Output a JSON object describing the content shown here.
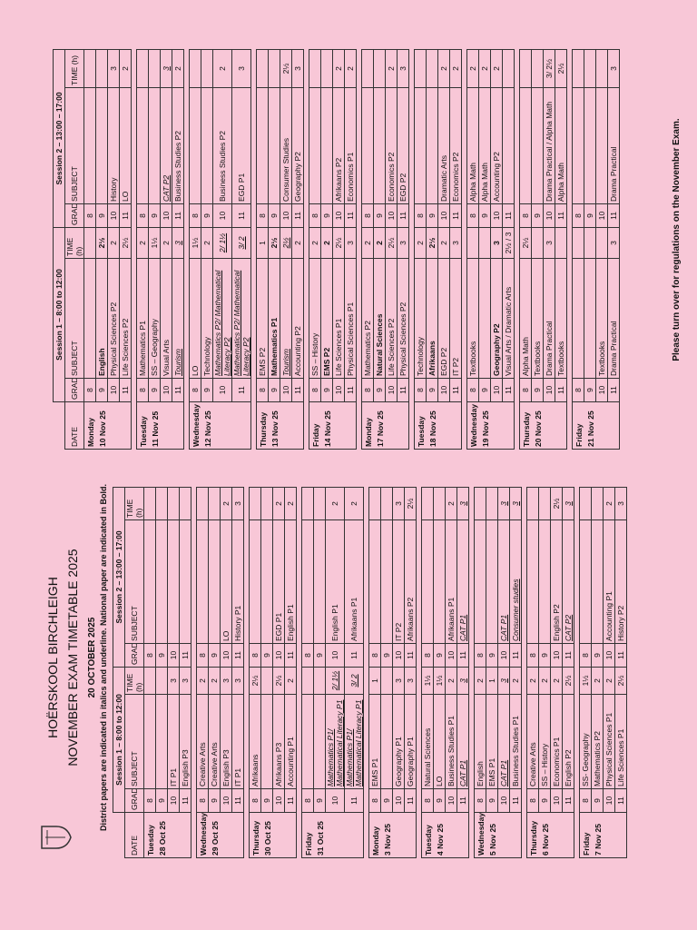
{
  "header": {
    "school": "HOËRSKOOL BIRCHLEIGH",
    "title": "NOVEMBER EXAM TIMETABLE 2025",
    "date": "20 OCTOBER 2025",
    "note": "District papers are indicated in italics and underline. National paper are indicated in Bold."
  },
  "columns": {
    "date": "DATE",
    "grade": "GRADE",
    "subject": "SUBJECT",
    "time": "TIME (h)"
  },
  "sessions": [
    "Session 1 – 8:00 to 12:00",
    "Session 2 – 13:00 – 17:00"
  ],
  "tables": [
    {
      "days": [
        {
          "day": "Tuesday",
          "date": "28 Oct 25",
          "rows": [
            {
              "g": 8,
              "a": null,
              "at": null,
              "b": null,
              "bt": null
            },
            {
              "g": 9,
              "a": null,
              "at": null,
              "b": null,
              "bt": null
            },
            {
              "g": 10,
              "a": "IT P1",
              "at": "3",
              "b": null,
              "bt": null
            },
            {
              "g": 11,
              "a": "English P3",
              "at": "3",
              "b": null,
              "bt": null
            }
          ]
        },
        {
          "day": "Wednesday",
          "date": "29 Oct 25",
          "rows": [
            {
              "g": 8,
              "a": "Creative Arts",
              "at": "2",
              "b": null,
              "bt": null
            },
            {
              "g": 9,
              "a": "Creative Arts",
              "at": "2",
              "b": null,
              "bt": null
            },
            {
              "g": 10,
              "a": "English P3",
              "at": "3",
              "b": "LO",
              "bt": "2"
            },
            {
              "g": 11,
              "a": "IT P1",
              "at": "3",
              "b": "History P1",
              "bt": "3"
            }
          ]
        },
        {
          "day": "Thursday",
          "date": "30 Oct 25",
          "rows": [
            {
              "g": 8,
              "a": "Afrikaans",
              "at": "2½",
              "b": null,
              "bt": null
            },
            {
              "g": 9,
              "a": null,
              "at": null,
              "b": null,
              "bt": null
            },
            {
              "g": 10,
              "a": "Afrikaans P3",
              "at": "2½",
              "b": "EGD P1",
              "bt": "2"
            },
            {
              "g": 11,
              "a": "Accounting P1",
              "at": "2",
              "b": "English P1",
              "bt": "2"
            }
          ]
        },
        {
          "day": "Friday",
          "date": "31 Oct 25",
          "rows": [
            {
              "g": 8,
              "a": null,
              "at": null,
              "b": null,
              "bt": null
            },
            {
              "g": 9,
              "a": null,
              "at": null,
              "b": null,
              "bt": null
            },
            {
              "g": 10,
              "a": "Mathematics P1/ Mathematical Literacy P1",
              "at": "2/ 1½",
              "af": "district",
              "b": "English P1",
              "bt": "2"
            },
            {
              "g": 11,
              "a": "Mathematics P1/ Mathematical Literacy P1",
              "at": "3/ 2",
              "af": "district",
              "b": "Afrikaans P1",
              "bt": "2"
            }
          ]
        },
        {
          "day": "Monday",
          "date": "3 Nov 25",
          "rows": [
            {
              "g": 8,
              "a": "EMS P1",
              "at": "1",
              "b": null,
              "bt": null
            },
            {
              "g": 9,
              "a": null,
              "at": null,
              "b": null,
              "bt": null
            },
            {
              "g": 10,
              "a": "Geography P1",
              "at": "3",
              "b": "IT P2",
              "bt": "3"
            },
            {
              "g": 11,
              "a": "Geography P1",
              "at": "3",
              "b": "Afrikaans P2",
              "bt": "2½"
            }
          ]
        },
        {
          "day": "Tuesday",
          "date": "4 Nov 25",
          "rows": [
            {
              "g": 8,
              "a": "Natural Sciences",
              "at": "1½",
              "b": null,
              "bt": null
            },
            {
              "g": 9,
              "a": "LO",
              "at": "1½",
              "b": null,
              "bt": null
            },
            {
              "g": 10,
              "a": "Business Studies P1",
              "at": "2",
              "b": "Afrikaans P1",
              "bt": "2"
            },
            {
              "g": 11,
              "a": "CAT P1",
              "at": "3",
              "af": "district",
              "b": "CAT P1",
              "bt": "3",
              "bf": "district"
            }
          ]
        },
        {
          "day": "Wednesday",
          "date": "5 Nov 25",
          "rows": [
            {
              "g": 8,
              "a": "English",
              "at": "2",
              "b": null,
              "bt": null
            },
            {
              "g": 9,
              "a": "EMS P1",
              "at": "1",
              "b": null,
              "bt": null
            },
            {
              "g": 10,
              "a": "CAT P1",
              "at": "3",
              "af": "district",
              "b": "CAT P1",
              "bt": "3",
              "bf": "district"
            },
            {
              "g": 11,
              "a": "Business Studies P1",
              "at": "2",
              "b": "Consumer studies",
              "bt": "3",
              "bf": "district"
            }
          ]
        },
        {
          "day": "Thursday",
          "date": "6 Nov 25",
          "rows": [
            {
              "g": 8,
              "a": "Creative Arts",
              "at": "2",
              "b": null,
              "bt": null
            },
            {
              "g": 9,
              "a": "SS – History",
              "at": "2",
              "b": null,
              "bt": null
            },
            {
              "g": 10,
              "a": "Economics P1",
              "at": "2",
              "b": "English P2",
              "bt": "2½"
            },
            {
              "g": 11,
              "a": "English P2",
              "at": "2½",
              "b": "CAT P2",
              "bt": "3",
              "bf": "district"
            }
          ]
        },
        {
          "day": "Friday",
          "date": "7 Nov 25",
          "rows": [
            {
              "g": 8,
              "a": "SS- Geography",
              "at": "1½",
              "b": null,
              "bt": null
            },
            {
              "g": 9,
              "a": "Mathematics P2",
              "at": "2",
              "b": null,
              "bt": null
            },
            {
              "g": 10,
              "a": "Physical Sciences P1",
              "at": "2",
              "b": "Accounting P1",
              "bt": "2"
            },
            {
              "g": 11,
              "a": "Life Sciences P1",
              "at": "2½",
              "b": "History P2",
              "bt": "3"
            }
          ]
        }
      ]
    },
    {
      "days": [
        {
          "day": "Monday",
          "date": "10 Nov 25",
          "rows": [
            {
              "g": 8,
              "a": null,
              "at": null,
              "b": null,
              "bt": null
            },
            {
              "g": 9,
              "a": "English",
              "at": "2½",
              "af": "national",
              "b": null,
              "bt": null
            },
            {
              "g": 10,
              "a": "Physical Sciences P2",
              "at": "2",
              "b": "History",
              "bt": "3"
            },
            {
              "g": 11,
              "a": "Life Sciences P2",
              "at": "2½",
              "b": "LO",
              "bt": "2"
            }
          ]
        },
        {
          "day": "Tuesday",
          "date": "11 Nov 25",
          "rows": [
            {
              "g": 8,
              "a": "Mathematics P1",
              "at": "2",
              "b": null,
              "bt": null
            },
            {
              "g": 9,
              "a": "SS – Geography",
              "at": "1½",
              "b": null,
              "bt": null
            },
            {
              "g": 10,
              "a": "Visual Arts",
              "at": "2",
              "b": "CAT P2",
              "bt": "3",
              "bf": "district"
            },
            {
              "g": 11,
              "a": "Tourism",
              "at": "3",
              "af": "district",
              "b": "Business Studies P2",
              "bt": "2"
            }
          ]
        },
        {
          "day": "Wednesday",
          "date": "12 Nov 25",
          "rows": [
            {
              "g": 8,
              "a": "LO",
              "at": "1½",
              "b": null,
              "bt": null
            },
            {
              "g": 9,
              "a": "Technology",
              "at": "2",
              "b": null,
              "bt": null
            },
            {
              "g": 10,
              "a": "Mathematics P2/ Mathematical Literacy P2",
              "at": "2/ 1½",
              "af": "district",
              "b": "Business Studies P2",
              "bt": "2"
            },
            {
              "g": 11,
              "a": "Mathematics P2/ Mathematical Literacy P2",
              "at": "3/ 2",
              "af": "district",
              "b": "EGD P1",
              "bt": "3"
            }
          ]
        },
        {
          "day": "Thursday",
          "date": "13 Nov 25",
          "rows": [
            {
              "g": 8,
              "a": "EMS P2",
              "at": "1",
              "b": null,
              "bt": null
            },
            {
              "g": 9,
              "a": "Mathematics P1",
              "at": "2½",
              "af": "national",
              "b": null,
              "bt": null
            },
            {
              "g": 10,
              "a": "Tourism",
              "at": "2½",
              "af": "district",
              "b": "Consumer Studies",
              "bt": "2½"
            },
            {
              "g": 11,
              "a": "Accounting P2",
              "at": "2",
              "b": "Geography P2",
              "bt": "3"
            }
          ]
        },
        {
          "day": "Friday",
          "date": "14 Nov 25",
          "rows": [
            {
              "g": 8,
              "a": "SS – History",
              "at": "2",
              "b": null,
              "bt": null
            },
            {
              "g": 9,
              "a": "EMS P2",
              "at": "2",
              "af": "national",
              "b": null,
              "bt": null
            },
            {
              "g": 10,
              "a": "Life Sciences P1",
              "at": "2½",
              "b": "Afrikaans P2",
              "bt": "2"
            },
            {
              "g": 11,
              "a": "Physical Sciences P1",
              "at": "3",
              "b": "Economics P1",
              "bt": "2"
            }
          ]
        },
        {
          "day": "Monday",
          "date": "17 Nov 25",
          "rows": [
            {
              "g": 8,
              "a": "Mathematics P2",
              "at": "2",
              "b": null,
              "bt": null
            },
            {
              "g": 9,
              "a": "Natural Sciences",
              "at": "2",
              "af": "national",
              "b": null,
              "bt": null
            },
            {
              "g": 10,
              "a": "Life Sciences P2",
              "at": "2½",
              "b": "Economics P2",
              "bt": "2"
            },
            {
              "g": 11,
              "a": "Physical Sciences P2",
              "at": "3",
              "b": "EGD P2",
              "bt": "3"
            }
          ]
        },
        {
          "day": "Tuesday",
          "date": "18 Nov 25",
          "rows": [
            {
              "g": 8,
              "a": "Technology",
              "at": "2",
              "b": null,
              "bt": null
            },
            {
              "g": 9,
              "a": "Afrikaans",
              "at": "2½",
              "af": "national",
              "b": null,
              "bt": null
            },
            {
              "g": 10,
              "a": "EGD P2",
              "at": "2",
              "b": "Dramatic Arts",
              "bt": "2"
            },
            {
              "g": 11,
              "a": "IT P2",
              "at": "3",
              "b": "Economics P2",
              "bt": "2"
            }
          ]
        },
        {
          "day": "Wednesday",
          "date": "19 Nov 25",
          "rows": [
            {
              "g": 8,
              "a": "Textbooks",
              "at": null,
              "b": "Alpha Math",
              "bt": "2"
            },
            {
              "g": 9,
              "a": null,
              "at": null,
              "b": "Alpha Math",
              "bt": "2"
            },
            {
              "g": 10,
              "a": "Geography P2",
              "at": "3",
              "af": "national",
              "b": "Accounting P2",
              "bt": "2"
            },
            {
              "g": 11,
              "a": "Visual Arts / Dramatic Arts",
              "at": "2½ / 3",
              "b": null,
              "bt": null
            }
          ]
        },
        {
          "day": "Thursday",
          "date": "20 Nov 25",
          "rows": [
            {
              "g": 8,
              "a": "Alpha Math",
              "at": "2½",
              "b": null,
              "bt": null
            },
            {
              "g": 9,
              "a": "Textbooks",
              "at": null,
              "b": null,
              "bt": null
            },
            {
              "g": 10,
              "a": "Drama Practical",
              "at": "3",
              "b": "Drama Practical / Alpha Math",
              "bt": "3/ 2½"
            },
            {
              "g": 11,
              "a": "Textbooks",
              "at": null,
              "b": "Alpha Math",
              "bt": "2½"
            }
          ]
        },
        {
          "day": "Friday",
          "date": "21 Nov 25",
          "rows": [
            {
              "g": 8,
              "a": null,
              "at": null,
              "b": null,
              "bt": null
            },
            {
              "g": 9,
              "a": null,
              "at": null,
              "b": null,
              "bt": null
            },
            {
              "g": 10,
              "a": "Textbooks",
              "at": null,
              "b": null,
              "bt": null
            },
            {
              "g": 11,
              "a": "Drama Practical",
              "at": "3",
              "b": "Drama Practical",
              "bt": "3"
            }
          ]
        }
      ]
    }
  ],
  "footer": "Please turn over for regulations on the November Exam."
}
